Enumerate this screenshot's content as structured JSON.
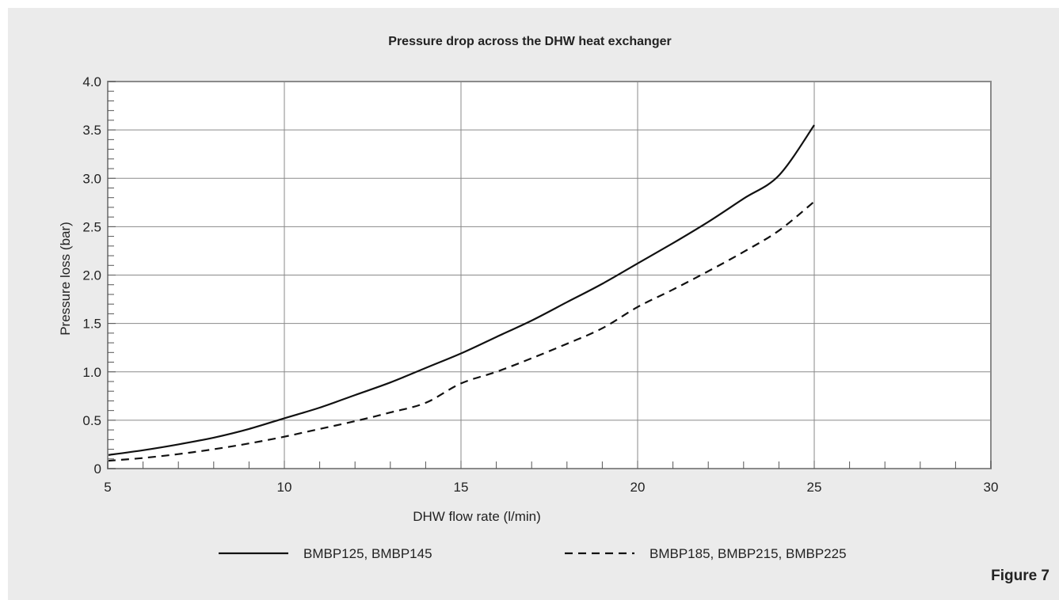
{
  "figure_label": "Figure 7",
  "chart_data": {
    "type": "line",
    "title": "Pressure drop across the DHW heat exchanger",
    "xlabel": "DHW flow rate (l/min)",
    "ylabel": "Pressure loss (bar)",
    "xlim": [
      5,
      30
    ],
    "ylim": [
      0,
      4.0
    ],
    "x_ticks": [
      5,
      10,
      15,
      20,
      25,
      30
    ],
    "x_tick_labels": [
      "5",
      "10",
      "15",
      "20",
      "25",
      "30"
    ],
    "y_ticks": [
      0,
      0.5,
      1.0,
      1.5,
      2.0,
      2.5,
      3.0,
      3.5,
      4.0
    ],
    "y_tick_labels": [
      "0",
      "0.5",
      "1.0",
      "1.5",
      "2.0",
      "2.5",
      "3.0",
      "3.5",
      "4.0"
    ],
    "grid": true,
    "legend_position": "bottom",
    "series": [
      {
        "name": "BMBP125, BMBP145",
        "style": "solid",
        "color": "#111111",
        "x": [
          5,
          6,
          7,
          8,
          9,
          10,
          11,
          12,
          13,
          14,
          15,
          16,
          17,
          18,
          19,
          20,
          21,
          22,
          23,
          24,
          25
        ],
        "y": [
          0.14,
          0.19,
          0.25,
          0.32,
          0.41,
          0.52,
          0.63,
          0.76,
          0.89,
          1.04,
          1.19,
          1.36,
          1.53,
          1.72,
          1.91,
          2.12,
          2.33,
          2.55,
          2.79,
          3.03,
          3.55
        ]
      },
      {
        "name": "BMBP185, BMBP215, BMBP225",
        "style": "dashed",
        "color": "#111111",
        "x": [
          5,
          6,
          7,
          8,
          9,
          10,
          11,
          12,
          13,
          14,
          15,
          16,
          17,
          18,
          19,
          20,
          21,
          22,
          23,
          24,
          25
        ],
        "y": [
          0.08,
          0.11,
          0.15,
          0.2,
          0.26,
          0.33,
          0.41,
          0.49,
          0.58,
          0.68,
          0.88,
          1.0,
          1.14,
          1.29,
          1.45,
          1.67,
          1.85,
          2.04,
          2.24,
          2.46,
          2.76
        ]
      }
    ]
  }
}
